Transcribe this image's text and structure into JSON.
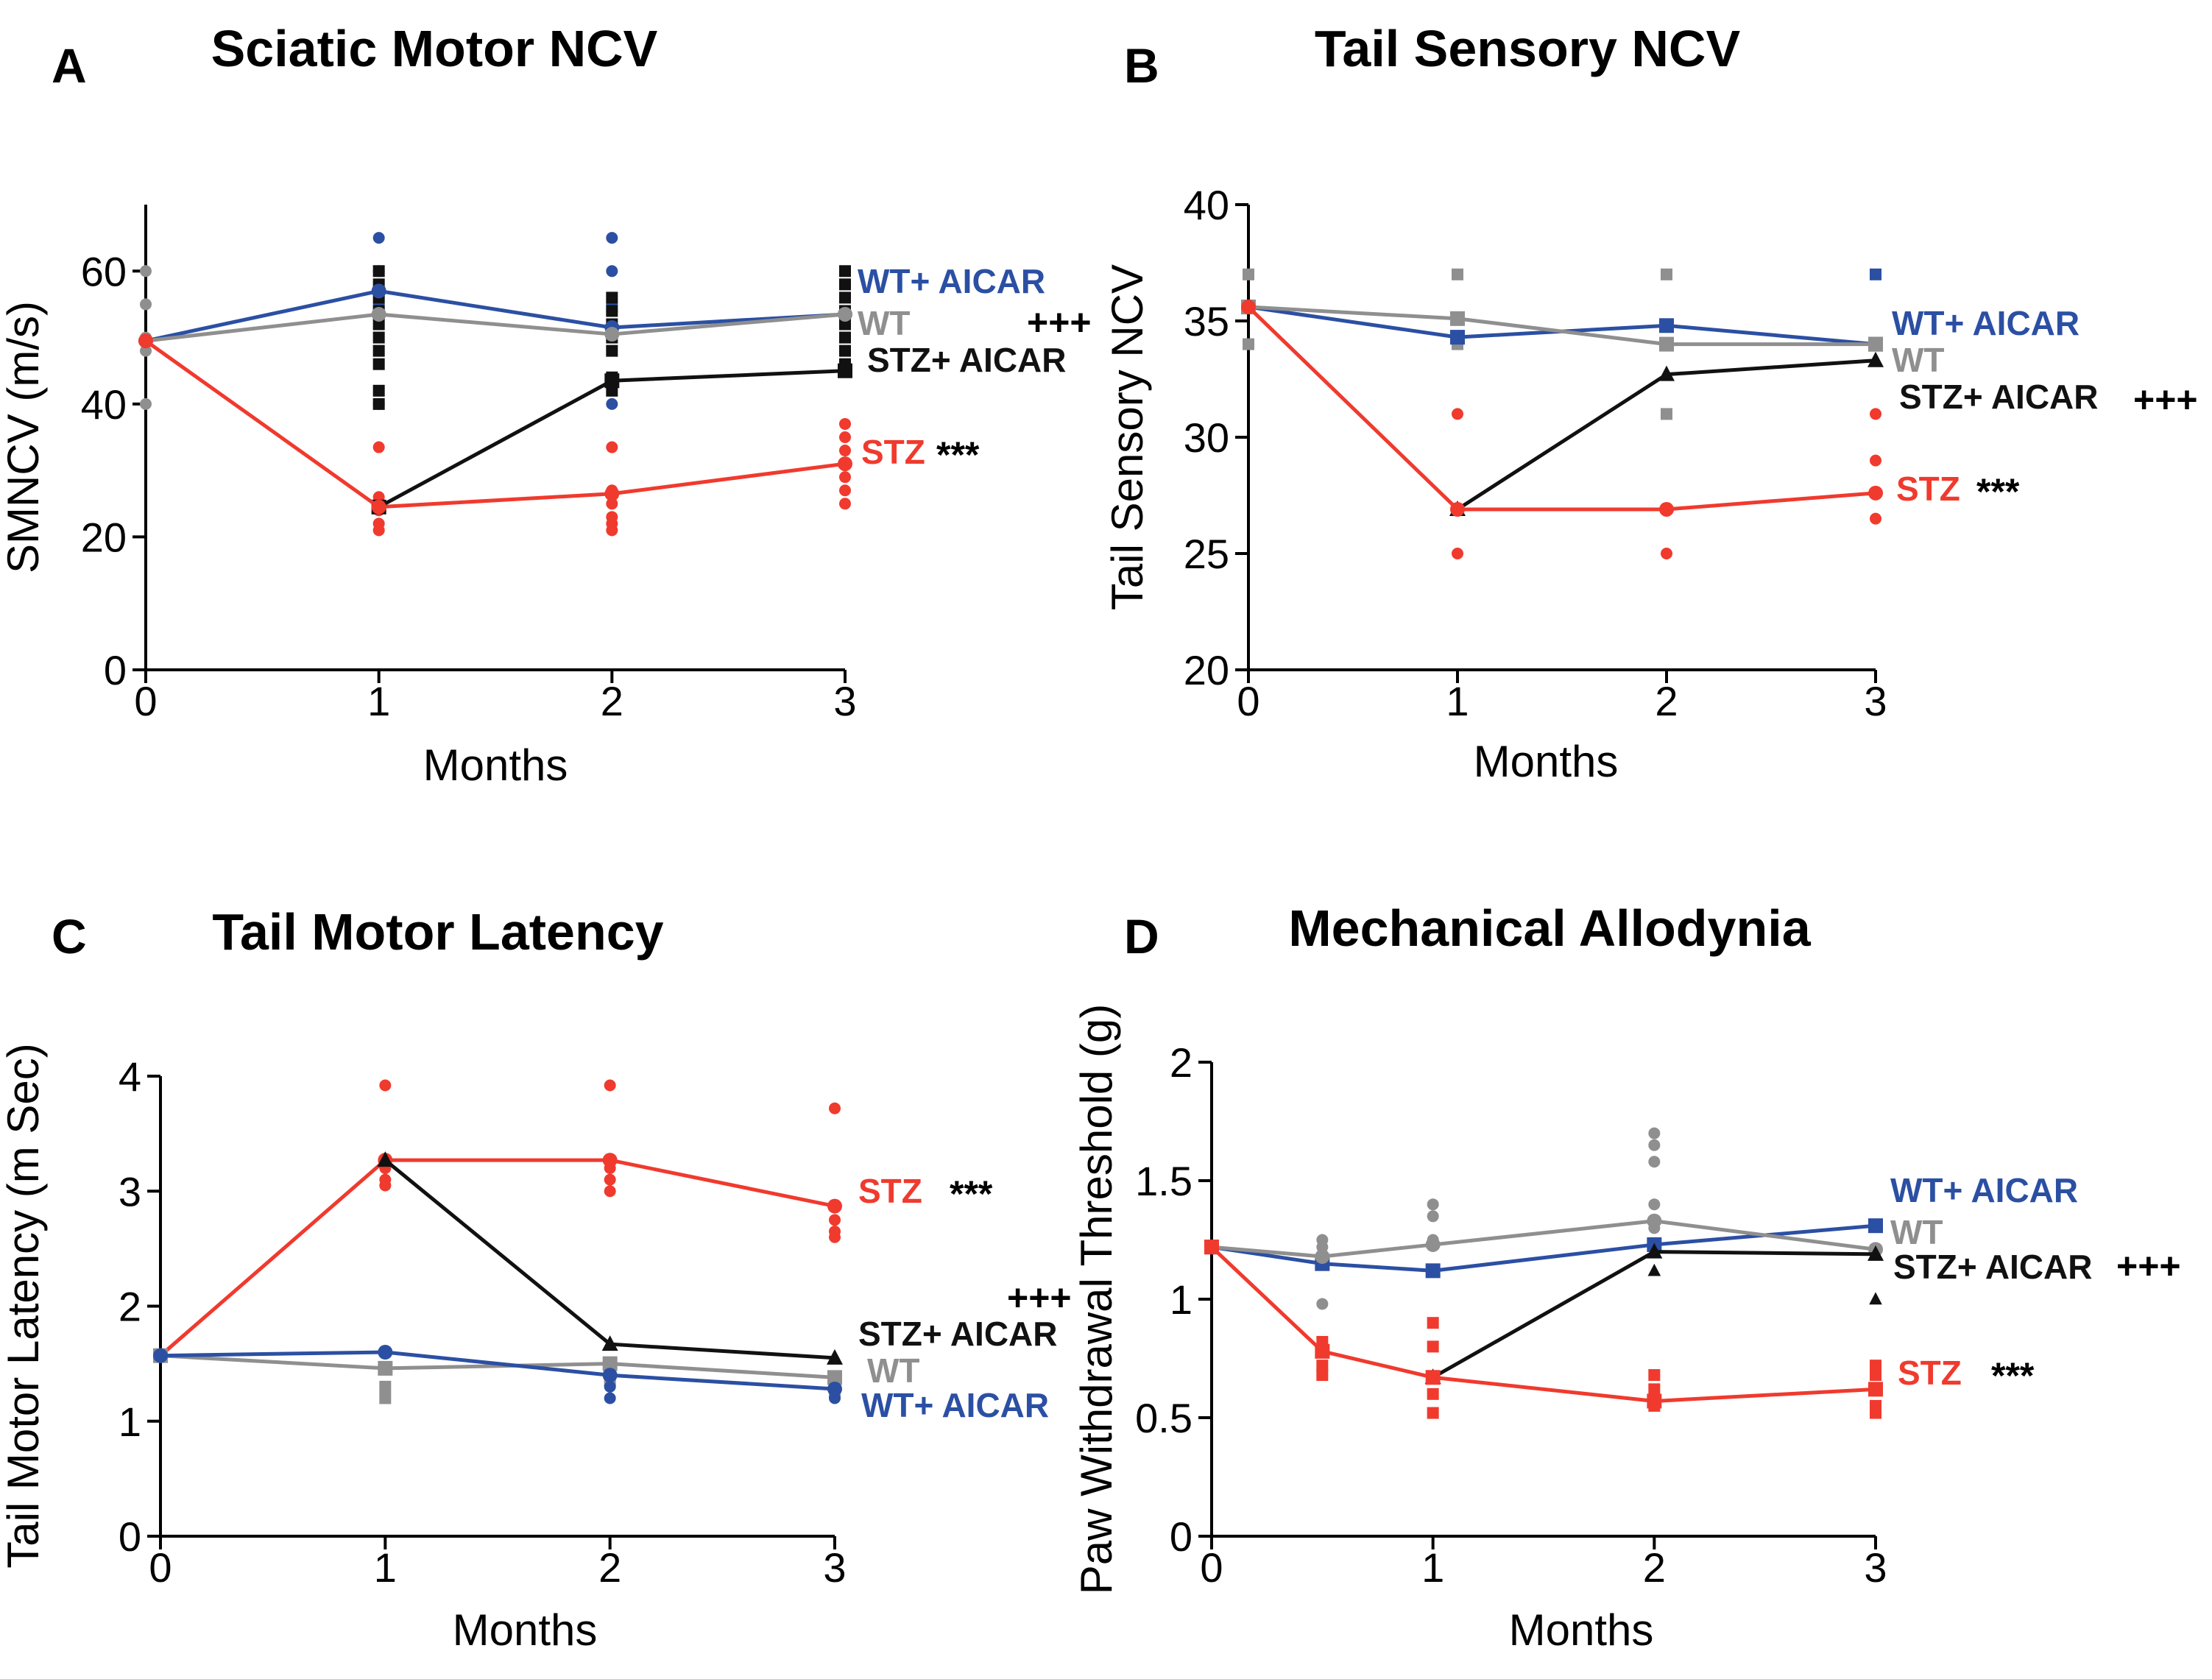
{
  "chart_data": [
    {
      "panel": "A",
      "type": "line",
      "title": "Sciatic Motor NCV",
      "xlabel": "Months",
      "ylabel": "SMNCV (m/s)",
      "xlim": [
        0,
        3
      ],
      "ylim": [
        0,
        70
      ],
      "xticks": [
        0,
        1,
        2,
        3
      ],
      "yticks": [
        0,
        20,
        40,
        60
      ],
      "series": [
        {
          "name": "WT+ AICAR",
          "color": "#2b4fa3",
          "marker": "circle",
          "x": [
            0,
            1,
            2,
            3
          ],
          "y": [
            49.5,
            57,
            51.5,
            53.5
          ],
          "points": [
            [
              1,
              65
            ],
            [
              1,
              60
            ],
            [
              1,
              57
            ],
            [
              1,
              55
            ],
            [
              1,
              40
            ],
            [
              2,
              65
            ],
            [
              2,
              60
            ],
            [
              2,
              55
            ],
            [
              2,
              54
            ],
            [
              2,
              40
            ]
          ]
        },
        {
          "name": "WT",
          "color": "#8f8f8f",
          "marker": "circle",
          "x": [
            0,
            1,
            2,
            3
          ],
          "y": [
            49.5,
            53.5,
            50.5,
            53.5
          ],
          "points": [
            [
              0,
              60
            ],
            [
              0,
              55
            ],
            [
              0,
              48
            ],
            [
              0,
              40
            ],
            [
              0,
              50
            ]
          ]
        },
        {
          "name": "STZ+ AICAR",
          "color": "#111111",
          "marker": "square",
          "x": [
            1,
            2,
            3
          ],
          "y": [
            24.5,
            43.5,
            45
          ],
          "points": [
            [
              1,
              60
            ],
            [
              1,
              58
            ],
            [
              1,
              56
            ],
            [
              1,
              54
            ],
            [
              1,
              52
            ],
            [
              1,
              50
            ],
            [
              1,
              48
            ],
            [
              1,
              46
            ],
            [
              1,
              42
            ],
            [
              1,
              40
            ],
            [
              2,
              56
            ],
            [
              2,
              54
            ],
            [
              2,
              52
            ],
            [
              2,
              50
            ],
            [
              2,
              48
            ],
            [
              2,
              44
            ],
            [
              2,
              42
            ],
            [
              3,
              60
            ],
            [
              3,
              58
            ],
            [
              3,
              56
            ],
            [
              3,
              54
            ],
            [
              3,
              52
            ],
            [
              3,
              50
            ],
            [
              3,
              48
            ],
            [
              3,
              46
            ]
          ]
        },
        {
          "name": "STZ",
          "color": "#f03a2e",
          "marker": "circle",
          "x": [
            0,
            1,
            2,
            3
          ],
          "y": [
            49.5,
            24.5,
            26.5,
            31
          ],
          "points": [
            [
              1,
              33.5
            ],
            [
              1,
              26
            ],
            [
              1,
              24
            ],
            [
              1,
              22
            ],
            [
              1,
              21
            ],
            [
              2,
              33.5
            ],
            [
              2,
              27
            ],
            [
              2,
              25
            ],
            [
              2,
              23
            ],
            [
              2,
              22
            ],
            [
              2,
              21
            ],
            [
              3,
              37
            ],
            [
              3,
              35
            ],
            [
              3,
              33
            ],
            [
              3,
              31
            ],
            [
              3,
              29
            ],
            [
              3,
              27
            ],
            [
              3,
              25
            ]
          ]
        }
      ],
      "labels": [
        {
          "text": "WT+ AICAR",
          "color": "#2b4fa3",
          "sig": ""
        },
        {
          "text": "WT",
          "color": "#8f8f8f",
          "sig": "+++"
        },
        {
          "text": "STZ+ AICAR",
          "color": "#111111",
          "sig": ""
        },
        {
          "text": "STZ",
          "color": "#f03a2e",
          "sig": "***"
        }
      ]
    },
    {
      "panel": "B",
      "type": "line",
      "title": "Tail Sensory NCV",
      "xlabel": "Months",
      "ylabel": "Tail Sensory NCV",
      "xlim": [
        0,
        3
      ],
      "ylim": [
        20,
        40
      ],
      "xticks": [
        0,
        1,
        2,
        3
      ],
      "yticks": [
        20,
        25,
        30,
        35,
        40
      ],
      "series": [
        {
          "name": "WT+ AICAR",
          "color": "#2b4fa3",
          "marker": "square",
          "x": [
            0,
            1,
            2,
            3
          ],
          "y": [
            35.6,
            34.3,
            34.8,
            34
          ],
          "points": [
            [
              3,
              37
            ]
          ]
        },
        {
          "name": "WT",
          "color": "#8f8f8f",
          "marker": "square",
          "x": [
            0,
            1,
            2,
            3
          ],
          "y": [
            35.6,
            35.1,
            34,
            34
          ],
          "points": [
            [
              0,
              37
            ],
            [
              0,
              34
            ],
            [
              1,
              37
            ],
            [
              1,
              34
            ],
            [
              2,
              37
            ],
            [
              2,
              31
            ]
          ]
        },
        {
          "name": "STZ+ AICAR",
          "color": "#111111",
          "marker": "triangle",
          "x": [
            1,
            2,
            3
          ],
          "y": [
            26.9,
            32.7,
            33.3
          ],
          "points": []
        },
        {
          "name": "STZ",
          "color": "#f03a2e",
          "marker": "circle",
          "x": [
            0,
            1,
            2,
            3
          ],
          "y": [
            35.6,
            26.9,
            26.9,
            27.6
          ],
          "points": [
            [
              1,
              31
            ],
            [
              1,
              25
            ],
            [
              2,
              25
            ],
            [
              3,
              31
            ],
            [
              3,
              29
            ],
            [
              3,
              26.5
            ]
          ]
        }
      ],
      "labels": [
        {
          "text": "WT+ AICAR",
          "color": "#2b4fa3",
          "sig": ""
        },
        {
          "text": "WT",
          "color": "#8f8f8f",
          "sig": ""
        },
        {
          "text": "STZ+ AICAR",
          "color": "#111111",
          "sig": "+++"
        },
        {
          "text": "STZ",
          "color": "#f03a2e",
          "sig": "***"
        }
      ]
    },
    {
      "panel": "C",
      "type": "line",
      "title": "Tail Motor Latency",
      "xlabel": "Months",
      "ylabel": "Tail Motor Latency (m Sec)",
      "xlim": [
        0,
        3
      ],
      "ylim": [
        0,
        4
      ],
      "xticks": [
        0,
        1,
        2,
        3
      ],
      "yticks": [
        0,
        1,
        2,
        3,
        4
      ],
      "series": [
        {
          "name": "STZ",
          "color": "#f03a2e",
          "marker": "circle",
          "x": [
            0,
            1,
            2,
            3
          ],
          "y": [
            1.57,
            3.27,
            3.27,
            2.87
          ],
          "points": [
            [
              1,
              3.92
            ],
            [
              1,
              3.2
            ],
            [
              1,
              3.1
            ],
            [
              1,
              3.05
            ],
            [
              2,
              3.92
            ],
            [
              2,
              3.2
            ],
            [
              2,
              3.1
            ],
            [
              2,
              3.0
            ],
            [
              3,
              3.72
            ],
            [
              3,
              2.75
            ],
            [
              3,
              2.65
            ],
            [
              3,
              2.6
            ]
          ]
        },
        {
          "name": "STZ+ AICAR",
          "color": "#111111",
          "marker": "triangle",
          "x": [
            1,
            2,
            3
          ],
          "y": [
            3.27,
            1.67,
            1.55
          ],
          "points": []
        },
        {
          "name": "WT",
          "color": "#8f8f8f",
          "marker": "square",
          "x": [
            0,
            1,
            2,
            3
          ],
          "y": [
            1.57,
            1.46,
            1.5,
            1.38
          ],
          "points": [
            [
              1,
              1.3
            ],
            [
              1,
              1.2
            ],
            [
              2,
              1.45
            ],
            [
              2,
              1.35
            ],
            [
              3,
              1.25
            ]
          ]
        },
        {
          "name": "WT+ AICAR",
          "color": "#2b4fa3",
          "marker": "circle",
          "x": [
            0,
            1,
            2,
            3
          ],
          "y": [
            1.57,
            1.6,
            1.4,
            1.28
          ],
          "points": [
            [
              1,
              1.45
            ],
            [
              2,
              1.3
            ],
            [
              2,
              1.2
            ],
            [
              3,
              1.2
            ]
          ]
        }
      ],
      "labels": [
        {
          "text": "STZ",
          "color": "#f03a2e",
          "sig": "***"
        },
        {
          "text": "STZ+ AICAR",
          "color": "#111111",
          "sig": "+++"
        },
        {
          "text": "WT",
          "color": "#8f8f8f",
          "sig": ""
        },
        {
          "text": "WT+ AICAR",
          "color": "#2b4fa3",
          "sig": ""
        }
      ]
    },
    {
      "panel": "D",
      "type": "line",
      "title": "Mechanical Allodynia",
      "xlabel": "Months",
      "ylabel": "Paw Withdrawal Threshold (g)",
      "xlim": [
        0,
        3
      ],
      "ylim": [
        0,
        2
      ],
      "xticks": [
        0,
        1,
        2,
        3
      ],
      "yticks": [
        0,
        0.5,
        1,
        1.5,
        2
      ],
      "series": [
        {
          "name": "WT+ AICAR",
          "color": "#2b4fa3",
          "marker": "square",
          "x": [
            0,
            0.5,
            1,
            2,
            3
          ],
          "y": [
            1.22,
            1.15,
            1.12,
            1.23,
            1.31
          ],
          "points": []
        },
        {
          "name": "WT",
          "color": "#8f8f8f",
          "marker": "circle",
          "x": [
            0,
            0.5,
            1,
            2,
            3
          ],
          "y": [
            1.22,
            1.18,
            1.23,
            1.33,
            1.21
          ],
          "points": [
            [
              0.5,
              1.25
            ],
            [
              0.5,
              1.22
            ],
            [
              0.5,
              0.98
            ],
            [
              1,
              1.4
            ],
            [
              1,
              1.35
            ],
            [
              1,
              1.25
            ],
            [
              2,
              1.7
            ],
            [
              2,
              1.65
            ],
            [
              2,
              1.58
            ],
            [
              2,
              1.4
            ],
            [
              2,
              1.3
            ],
            [
              3,
              1.2
            ]
          ]
        },
        {
          "name": "STZ+ AICAR",
          "color": "#111111",
          "marker": "triangle",
          "x": [
            1,
            2,
            3
          ],
          "y": [
            0.67,
            1.2,
            1.19
          ],
          "points": [
            [
              2,
              1.12
            ],
            [
              3,
              1.0
            ]
          ]
        },
        {
          "name": "STZ",
          "color": "#f03a2e",
          "marker": "square",
          "x": [
            0,
            0.5,
            1,
            2,
            3
          ],
          "y": [
            1.22,
            0.78,
            0.67,
            0.57,
            0.62
          ],
          "points": [
            [
              0.5,
              0.82
            ],
            [
              0.5,
              0.72
            ],
            [
              0.5,
              0.68
            ],
            [
              1,
              0.9
            ],
            [
              1,
              0.8
            ],
            [
              1,
              0.6
            ],
            [
              1,
              0.52
            ],
            [
              2,
              0.68
            ],
            [
              2,
              0.62
            ],
            [
              2,
              0.55
            ],
            [
              3,
              0.72
            ],
            [
              3,
              0.68
            ],
            [
              3,
              0.55
            ],
            [
              3,
              0.52
            ]
          ]
        }
      ],
      "labels": [
        {
          "text": "WT+ AICAR",
          "color": "#2b4fa3",
          "sig": ""
        },
        {
          "text": "WT",
          "color": "#8f8f8f",
          "sig": ""
        },
        {
          "text": "STZ+ AICAR",
          "color": "#111111",
          "sig": "+++"
        },
        {
          "text": "STZ",
          "color": "#f03a2e",
          "sig": "***"
        }
      ]
    }
  ]
}
